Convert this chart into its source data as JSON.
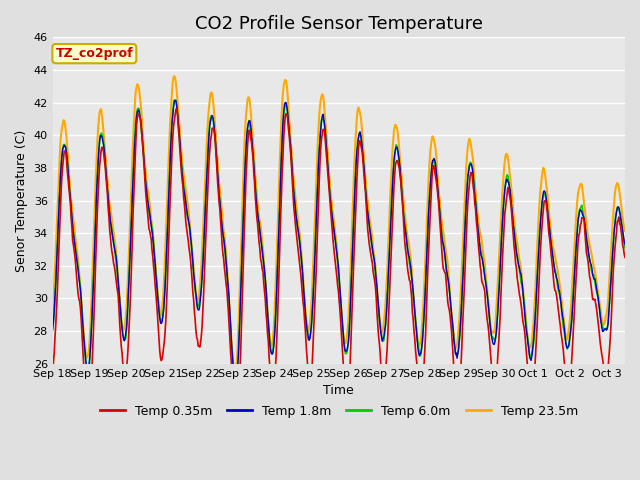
{
  "title": "CO2 Profile Sensor Temperature",
  "xlabel": "Time",
  "ylabel": "Senor Temperature (C)",
  "ylim": [
    26,
    46
  ],
  "bg_color": "#e0e0e0",
  "plot_bg": "#e8e8e8",
  "grid_color": "white",
  "annotation_text": "TZ_co2prof",
  "annotation_bg": "#ffffcc",
  "annotation_border": "#ccaa00",
  "annotation_text_color": "#cc0000",
  "series": [
    {
      "label": "Temp 0.35m",
      "color": "#dd0000",
      "lw": 1.2
    },
    {
      "label": "Temp 1.8m",
      "color": "#0000cc",
      "lw": 1.0
    },
    {
      "label": "Temp 6.0m",
      "color": "#00cc00",
      "lw": 1.2
    },
    {
      "label": "Temp 23.5m",
      "color": "#ffaa00",
      "lw": 1.5
    }
  ],
  "xtick_labels": [
    "Sep 18",
    "Sep 19",
    "Sep 20",
    "Sep 21",
    "Sep 22",
    "Sep 23",
    "Sep 24",
    "Sep 25",
    "Sep 26",
    "Sep 27",
    "Sep 28",
    "Sep 29",
    "Sep 30",
    "Oct 1",
    "Oct 2",
    "Oct 3"
  ],
  "title_fontsize": 13,
  "axis_label_fontsize": 9,
  "tick_fontsize": 8
}
